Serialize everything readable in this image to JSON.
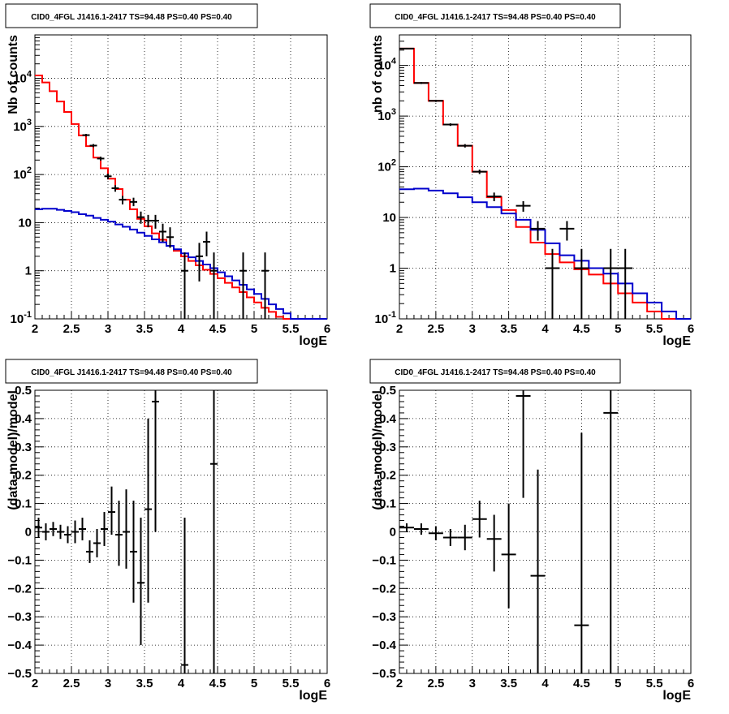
{
  "chart_data": [
    {
      "type": "line",
      "title": "CID0_4FGL J1416.1-2417 TS=94.48 PS=0.40 PS=0.40",
      "xlabel": "logE",
      "ylabel": "Nb of counts",
      "xlim": [
        2,
        6
      ],
      "ylim": [
        0.1,
        80000
      ],
      "yscale": "log",
      "grid": true,
      "x_ticks": [
        "2",
        "2.5",
        "3",
        "3.5",
        "4",
        "4.5",
        "5",
        "5.5",
        "6"
      ],
      "y_ticks": [
        "10^-1",
        "1",
        "10",
        "10^2",
        "10^3",
        "10^4"
      ],
      "bin_edges": [
        2.0,
        2.1,
        2.2,
        2.3,
        2.4,
        2.5,
        2.6,
        2.7,
        2.8,
        2.9,
        3.0,
        3.1,
        3.2,
        3.3,
        3.4,
        3.5,
        3.6,
        3.7,
        3.8,
        3.9,
        4.0,
        4.1,
        4.2,
        4.3,
        4.4,
        4.5,
        4.6,
        4.7,
        4.8,
        4.9,
        5.0,
        5.1,
        5.2,
        5.3,
        5.4,
        5.5,
        5.6,
        5.7,
        5.8,
        5.9,
        6.0
      ],
      "series": [
        {
          "color": "#ff0000",
          "values": [
            11500,
            8200,
            5400,
            3300,
            2000,
            1120,
            650,
            390,
            225,
            135,
            82,
            50,
            30,
            19,
            12,
            8.4,
            6.0,
            4.4,
            3.3,
            2.6,
            2.0,
            1.6,
            1.3,
            1.05,
            0.86,
            0.7,
            0.56,
            0.45,
            0.36,
            0.28,
            0.22,
            0.17,
            0.14,
            0.11,
            0.1,
            0.1,
            0.1,
            0.1,
            0.1,
            0.1
          ]
        },
        {
          "color": "#0000cc",
          "values": [
            19,
            19.5,
            19.5,
            18.5,
            17.5,
            16.5,
            15,
            14,
            12.5,
            11.5,
            10.5,
            9.2,
            8.2,
            7.2,
            6.2,
            5.3,
            4.5,
            3.9,
            3.3,
            2.8,
            2.3,
            1.9,
            1.6,
            1.35,
            1.13,
            0.93,
            0.77,
            0.63,
            0.51,
            0.41,
            0.33,
            0.26,
            0.2,
            0.16,
            0.13,
            0.1,
            0.1,
            0.1,
            0.1,
            0.1
          ]
        }
      ],
      "points": [
        {
          "x": 2.7,
          "y": 660,
          "xerr": 0.05,
          "ylo": 620,
          "yhi": 700
        },
        {
          "x": 2.8,
          "y": 400,
          "xerr": 0.05,
          "ylo": 370,
          "yhi": 430
        },
        {
          "x": 2.9,
          "y": 215,
          "xerr": 0.05,
          "ylo": 195,
          "yhi": 235
        },
        {
          "x": 3.0,
          "y": 92,
          "xerr": 0.05,
          "ylo": 80,
          "yhi": 104
        },
        {
          "x": 3.1,
          "y": 52,
          "xerr": 0.05,
          "ylo": 44,
          "yhi": 60
        },
        {
          "x": 3.2,
          "y": 30,
          "xerr": 0.05,
          "ylo": 24,
          "yhi": 36
        },
        {
          "x": 3.35,
          "y": 27,
          "xerr": 0.05,
          "ylo": 22,
          "yhi": 33
        },
        {
          "x": 3.45,
          "y": 13,
          "xerr": 0.05,
          "ylo": 9.5,
          "yhi": 17
        },
        {
          "x": 3.55,
          "y": 11,
          "xerr": 0.05,
          "ylo": 8,
          "yhi": 14.5
        },
        {
          "x": 3.65,
          "y": 11,
          "xerr": 0.05,
          "ylo": 7.5,
          "yhi": 14.5
        },
        {
          "x": 3.75,
          "y": 6.5,
          "xerr": 0.05,
          "ylo": 4,
          "yhi": 9.5
        },
        {
          "x": 3.85,
          "y": 5,
          "xerr": 0.05,
          "ylo": 3,
          "yhi": 8
        },
        {
          "x": 4.05,
          "y": 1,
          "xerr": 0.05,
          "ylo": 0.1,
          "yhi": 2.4
        },
        {
          "x": 4.25,
          "y": 2,
          "xerr": 0.05,
          "ylo": 0.6,
          "yhi": 3.8
        },
        {
          "x": 4.35,
          "y": 4,
          "xerr": 0.05,
          "ylo": 2,
          "yhi": 6.5
        },
        {
          "x": 4.45,
          "y": 1,
          "xerr": 0.05,
          "ylo": 0.1,
          "yhi": 2.4
        },
        {
          "x": 4.85,
          "y": 1,
          "xerr": 0.05,
          "ylo": 0.1,
          "yhi": 2.4
        },
        {
          "x": 5.15,
          "y": 1,
          "xerr": 0.05,
          "ylo": 0.1,
          "yhi": 2.4
        }
      ]
    },
    {
      "type": "line",
      "title": "CID0_4FGL J1416.1-2417 TS=94.48 PS=0.40 PS=0.40",
      "xlabel": "logE",
      "ylabel": "nb of counts",
      "xlim": [
        2,
        6
      ],
      "ylim": [
        0.1,
        40000
      ],
      "yscale": "log",
      "grid": true,
      "x_ticks": [
        "2",
        "2.5",
        "3",
        "3.5",
        "4",
        "4.5",
        "5",
        "5.5",
        "6"
      ],
      "y_ticks": [
        "10^-1",
        "1",
        "10",
        "10^2",
        "10^3",
        "10^4"
      ],
      "bin_edges": [
        2.0,
        2.2,
        2.4,
        2.6,
        2.8,
        3.0,
        3.2,
        3.4,
        3.6,
        3.8,
        4.0,
        4.2,
        4.4,
        4.6,
        4.8,
        5.0,
        5.2,
        5.4,
        5.6,
        5.8,
        6.0
      ],
      "series": [
        {
          "color": "#ff0000",
          "values": [
            21500,
            4500,
            2000,
            680,
            260,
            80,
            25,
            14,
            6.5,
            3.2,
            1.9,
            1.3,
            0.95,
            0.75,
            0.5,
            0.32,
            0.21,
            0.14,
            0.1,
            0.1
          ]
        },
        {
          "color": "#0000cc",
          "values": [
            36,
            37,
            34,
            30,
            25,
            20,
            16,
            12,
            9,
            5.7,
            3.1,
            1.8,
            1.4,
            1.0,
            0.78,
            0.5,
            0.32,
            0.21,
            0.14,
            0.1
          ]
        }
      ],
      "points": [
        {
          "x": 2.1,
          "y": 21500,
          "xerr": 0.1,
          "ylo": 20800,
          "yhi": 22200
        },
        {
          "x": 2.3,
          "y": 4500,
          "xerr": 0.1,
          "ylo": 4300,
          "yhi": 4700
        },
        {
          "x": 2.5,
          "y": 2000,
          "xerr": 0.1,
          "ylo": 1900,
          "yhi": 2100
        },
        {
          "x": 2.7,
          "y": 680,
          "xerr": 0.1,
          "ylo": 640,
          "yhi": 720
        },
        {
          "x": 2.9,
          "y": 260,
          "xerr": 0.1,
          "ylo": 240,
          "yhi": 280
        },
        {
          "x": 3.1,
          "y": 80,
          "xerr": 0.1,
          "ylo": 72,
          "yhi": 88
        },
        {
          "x": 3.3,
          "y": 26,
          "xerr": 0.1,
          "ylo": 21,
          "yhi": 31
        },
        {
          "x": 3.7,
          "y": 17,
          "xerr": 0.1,
          "ylo": 13,
          "yhi": 21
        },
        {
          "x": 3.9,
          "y": 6,
          "xerr": 0.1,
          "ylo": 3.5,
          "yhi": 8.5
        },
        {
          "x": 4.1,
          "y": 1,
          "xerr": 0.1,
          "ylo": 0.1,
          "yhi": 2.4
        },
        {
          "x": 4.3,
          "y": 6,
          "xerr": 0.1,
          "ylo": 3.5,
          "yhi": 8.5
        },
        {
          "x": 4.5,
          "y": 1,
          "xerr": 0.1,
          "ylo": 0.1,
          "yhi": 2.4
        },
        {
          "x": 4.9,
          "y": 1,
          "xerr": 0.1,
          "ylo": 0.1,
          "yhi": 2.4
        },
        {
          "x": 5.1,
          "y": 1,
          "xerr": 0.1,
          "ylo": 0.1,
          "yhi": 2.4
        }
      ]
    },
    {
      "type": "scatter",
      "title": "CID0_4FGL J1416.1-2417 TS=94.48 PS=0.40 PS=0.40",
      "xlabel": "logE",
      "ylabel": "(data-model)/model",
      "xlim": [
        2,
        6
      ],
      "ylim": [
        -0.5,
        0.5
      ],
      "grid": true,
      "x_ticks": [
        "2",
        "2.5",
        "3",
        "3.5",
        "4",
        "4.5",
        "5",
        "5.5",
        "6"
      ],
      "y_ticks": [
        "-0.5",
        "-0.4",
        "-0.3",
        "-0.2",
        "-0.1",
        "0",
        "0.1",
        "0.2",
        "0.3",
        "0.4",
        "0.5"
      ],
      "points": [
        {
          "x": 2.05,
          "y": 0.015,
          "xerr": 0.05,
          "ylo": -0.02,
          "yhi": 0.05
        },
        {
          "x": 2.15,
          "y": 0.0,
          "xerr": 0.05,
          "ylo": -0.03,
          "yhi": 0.03
        },
        {
          "x": 2.25,
          "y": 0.01,
          "xerr": 0.05,
          "ylo": -0.015,
          "yhi": 0.035
        },
        {
          "x": 2.35,
          "y": 0.0,
          "xerr": 0.05,
          "ylo": -0.025,
          "yhi": 0.025
        },
        {
          "x": 2.45,
          "y": -0.01,
          "xerr": 0.05,
          "ylo": -0.04,
          "yhi": 0.02
        },
        {
          "x": 2.55,
          "y": 0.0,
          "xerr": 0.05,
          "ylo": -0.04,
          "yhi": 0.04
        },
        {
          "x": 2.65,
          "y": 0.01,
          "xerr": 0.05,
          "ylo": -0.03,
          "yhi": 0.05
        },
        {
          "x": 2.75,
          "y": -0.07,
          "xerr": 0.05,
          "ylo": -0.11,
          "yhi": -0.03
        },
        {
          "x": 2.85,
          "y": -0.04,
          "xerr": 0.05,
          "ylo": -0.09,
          "yhi": 0.01
        },
        {
          "x": 2.95,
          "y": 0.01,
          "xerr": 0.05,
          "ylo": -0.05,
          "yhi": 0.07
        },
        {
          "x": 3.05,
          "y": 0.07,
          "xerr": 0.05,
          "ylo": -0.01,
          "yhi": 0.16
        },
        {
          "x": 3.15,
          "y": -0.01,
          "xerr": 0.05,
          "ylo": -0.12,
          "yhi": 0.11
        },
        {
          "x": 3.25,
          "y": 0.0,
          "xerr": 0.05,
          "ylo": -0.13,
          "yhi": 0.15
        },
        {
          "x": 3.35,
          "y": -0.07,
          "xerr": 0.05,
          "ylo": -0.25,
          "yhi": 0.11
        },
        {
          "x": 3.45,
          "y": -0.18,
          "xerr": 0.05,
          "ylo": -0.4,
          "yhi": 0.05
        },
        {
          "x": 3.55,
          "y": 0.08,
          "xerr": 0.05,
          "ylo": -0.25,
          "yhi": 0.4
        },
        {
          "x": 3.65,
          "y": 0.46,
          "xerr": 0.05,
          "ylo": 0.0,
          "yhi": 0.5
        },
        {
          "x": 4.05,
          "y": -0.47,
          "xerr": 0.05,
          "ylo": -0.5,
          "yhi": 0.05
        },
        {
          "x": 4.45,
          "y": 0.24,
          "xerr": 0.05,
          "ylo": -0.5,
          "yhi": 0.5
        }
      ]
    },
    {
      "type": "scatter",
      "title": "CID0_4FGL J1416.1-2417 TS=94.48 PS=0.40 PS=0.40",
      "xlabel": "logE",
      "ylabel": "(data-model)/model",
      "xlim": [
        2,
        6
      ],
      "ylim": [
        -0.5,
        0.5
      ],
      "grid": true,
      "x_ticks": [
        "2",
        "2.5",
        "3",
        "3.5",
        "4",
        "4.5",
        "5",
        "5.5",
        "6"
      ],
      "y_ticks": [
        "-0.5",
        "-0.4",
        "-0.3",
        "-0.2",
        "-0.1",
        "0",
        "0.1",
        "0.2",
        "0.3",
        "0.4",
        "0.5"
      ],
      "points": [
        {
          "x": 2.1,
          "y": 0.015,
          "xerr": 0.1,
          "ylo": 0.0,
          "yhi": 0.03
        },
        {
          "x": 2.3,
          "y": 0.01,
          "xerr": 0.1,
          "ylo": -0.01,
          "yhi": 0.03
        },
        {
          "x": 2.5,
          "y": -0.005,
          "xerr": 0.1,
          "ylo": -0.03,
          "yhi": 0.02
        },
        {
          "x": 2.7,
          "y": -0.02,
          "xerr": 0.1,
          "ylo": -0.05,
          "yhi": 0.01
        },
        {
          "x": 2.9,
          "y": -0.02,
          "xerr": 0.1,
          "ylo": -0.065,
          "yhi": 0.025
        },
        {
          "x": 3.1,
          "y": 0.045,
          "xerr": 0.1,
          "ylo": -0.02,
          "yhi": 0.11
        },
        {
          "x": 3.3,
          "y": -0.025,
          "xerr": 0.1,
          "ylo": -0.14,
          "yhi": 0.06
        },
        {
          "x": 3.5,
          "y": -0.08,
          "xerr": 0.1,
          "ylo": -0.27,
          "yhi": 0.1
        },
        {
          "x": 3.7,
          "y": 0.48,
          "xerr": 0.1,
          "ylo": 0.12,
          "yhi": 0.5
        },
        {
          "x": 3.9,
          "y": -0.155,
          "xerr": 0.1,
          "ylo": -0.5,
          "yhi": 0.22
        },
        {
          "x": 4.5,
          "y": -0.33,
          "xerr": 0.1,
          "ylo": -0.5,
          "yhi": 0.35
        },
        {
          "x": 4.9,
          "y": 0.42,
          "xerr": 0.1,
          "ylo": -0.5,
          "yhi": 0.5
        }
      ]
    }
  ]
}
